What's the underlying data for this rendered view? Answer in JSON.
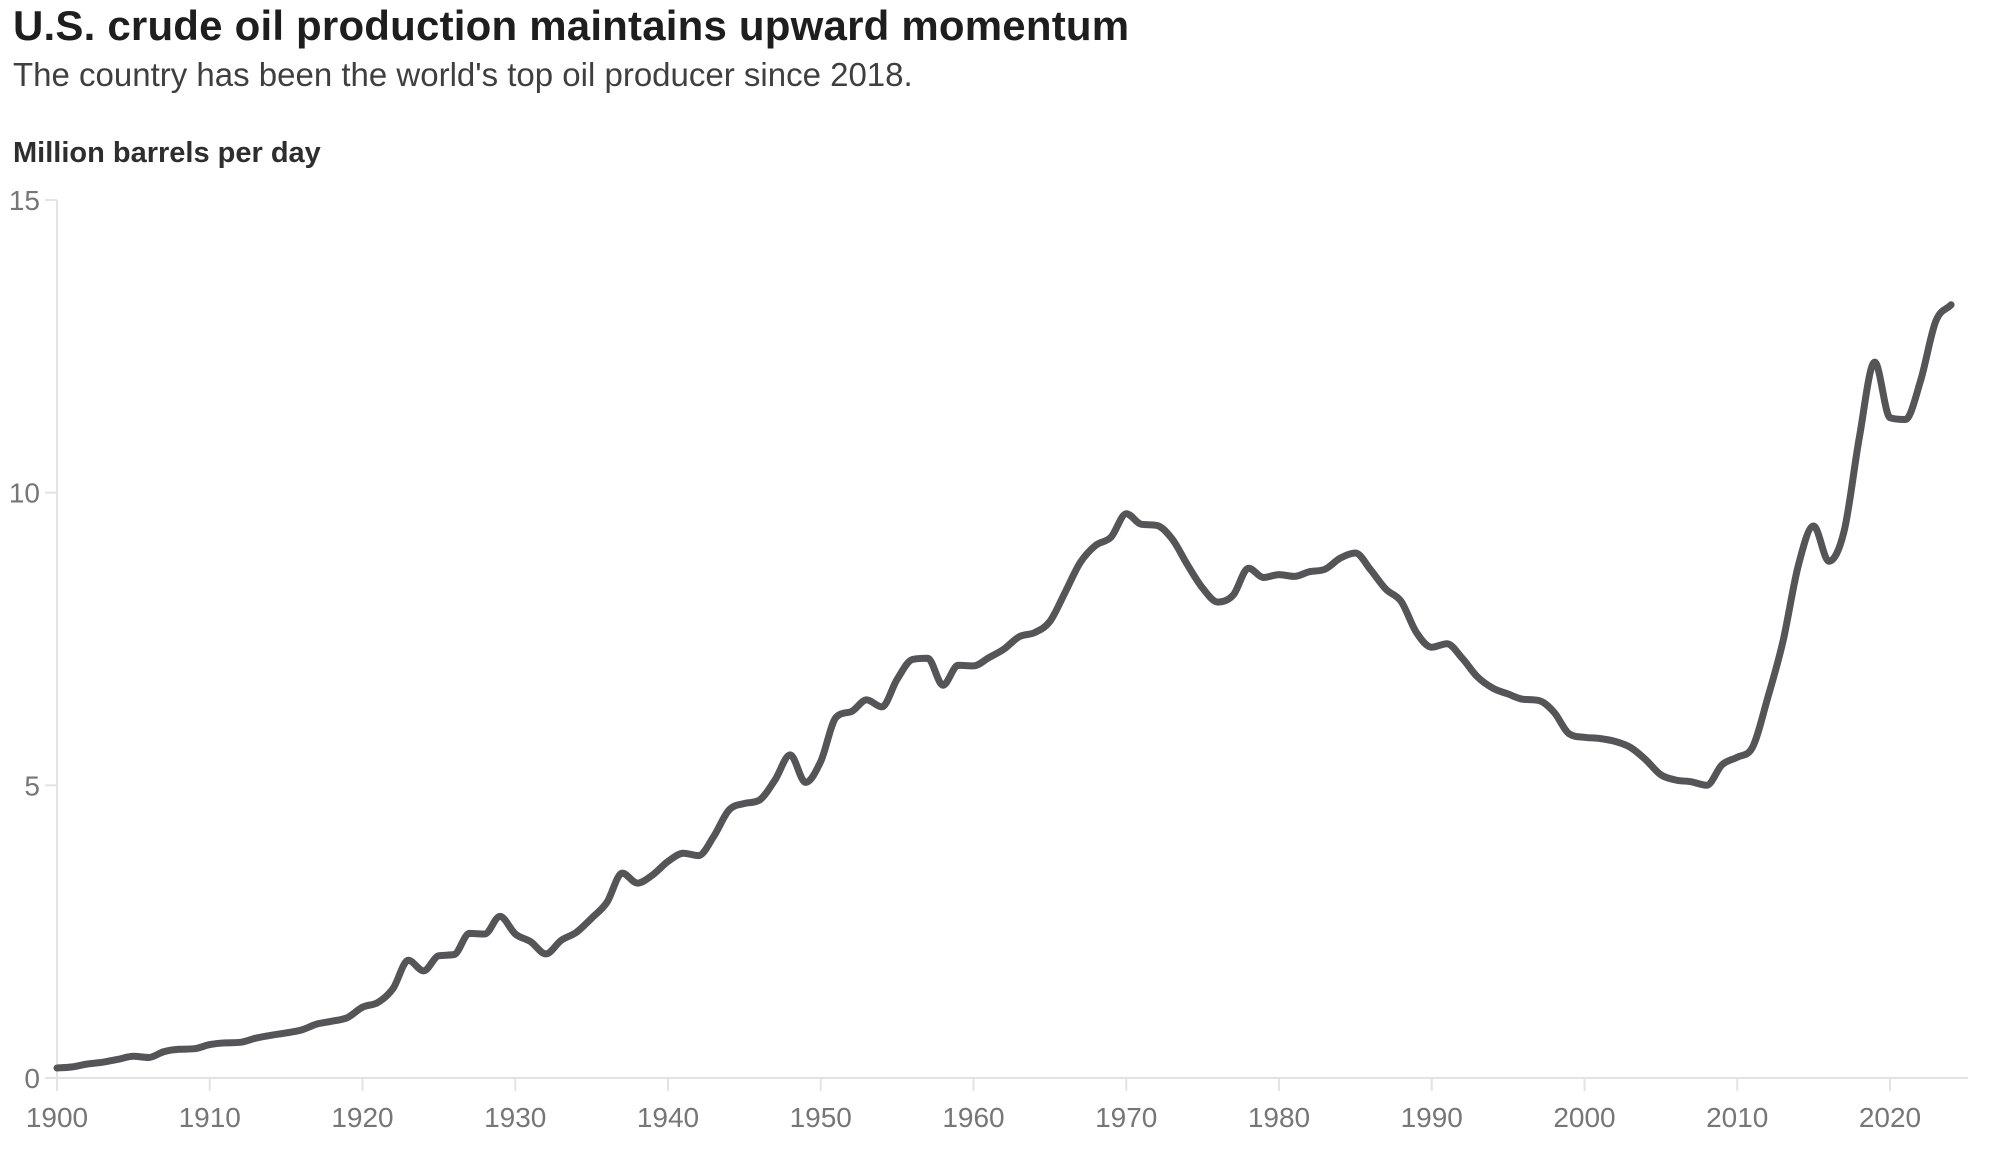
{
  "chart_data": {
    "type": "line",
    "title": "U.S. crude oil production maintains upward momentum",
    "subtitle": "The country has been the world's top oil producer since 2018.",
    "ylabel": "Million barrels per day",
    "xlabel": "",
    "x_start": 1900,
    "x_end": 2024,
    "x_interval_years": 1,
    "series": [
      {
        "name": "U.S. crude oil production (million barrels per day)",
        "values": [
          0.17,
          0.19,
          0.24,
          0.27,
          0.32,
          0.37,
          0.35,
          0.45,
          0.49,
          0.5,
          0.57,
          0.6,
          0.61,
          0.68,
          0.73,
          0.77,
          0.82,
          0.92,
          0.97,
          1.03,
          1.21,
          1.29,
          1.53,
          2.01,
          1.83,
          2.09,
          2.11,
          2.47,
          2.46,
          2.76,
          2.46,
          2.33,
          2.12,
          2.35,
          2.49,
          2.73,
          3.0,
          3.5,
          3.33,
          3.47,
          3.7,
          3.84,
          3.8,
          4.13,
          4.58,
          4.69,
          4.75,
          5.09,
          5.52,
          5.05,
          5.41,
          6.16,
          6.26,
          6.46,
          6.34,
          6.81,
          7.15,
          7.17,
          6.71,
          7.05,
          7.04,
          7.18,
          7.33,
          7.54,
          7.61,
          7.8,
          8.3,
          8.81,
          9.1,
          9.24,
          9.64,
          9.46,
          9.44,
          9.21,
          8.77,
          8.37,
          8.13,
          8.25,
          8.71,
          8.55,
          8.6,
          8.57,
          8.65,
          8.69,
          8.88,
          8.97,
          8.68,
          8.35,
          8.14,
          7.61,
          7.36,
          7.42,
          7.17,
          6.85,
          6.66,
          6.56,
          6.47,
          6.45,
          6.25,
          5.88,
          5.82,
          5.8,
          5.75,
          5.65,
          5.44,
          5.18,
          5.09,
          5.06,
          5.0,
          5.35,
          5.48,
          5.65,
          6.5,
          7.47,
          8.76,
          9.43,
          8.83,
          9.35,
          10.96,
          12.23,
          11.28,
          11.25,
          11.91,
          12.93,
          13.21
        ]
      }
    ],
    "x_ticks": [
      1900,
      1910,
      1920,
      1930,
      1940,
      1950,
      1960,
      1970,
      1980,
      1990,
      2000,
      2010,
      2020
    ],
    "y_ticks": [
      0,
      5,
      10,
      15
    ],
    "xlim": [
      1900,
      2025
    ],
    "ylim": [
      0,
      15
    ],
    "grid": false,
    "legend": "none",
    "colors": {
      "line": "#555557",
      "axis": "#e3e3e3",
      "tick_label": "#767676",
      "title": "#1e1e1e",
      "subtitle": "#3f3f3f",
      "axis_title": "#2e2e2e",
      "background": "#ffffff"
    }
  }
}
